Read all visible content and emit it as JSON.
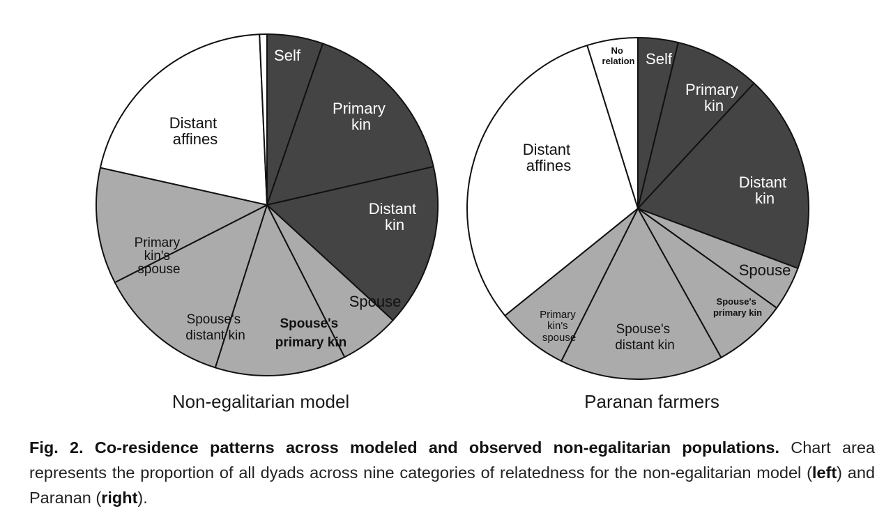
{
  "chart_data": [
    {
      "type": "pie",
      "title": "Non-egalitarian model",
      "slices": [
        {
          "label": "Self",
          "value": 5.3,
          "group": "dark"
        },
        {
          "label": "Primary kin",
          "value": 16.1,
          "group": "dark"
        },
        {
          "label": "Distant kin",
          "value": 15.4,
          "group": "dark"
        },
        {
          "label": "Spouse",
          "value": 5.7,
          "group": "light"
        },
        {
          "label": "Spouse's primary kin",
          "value": 12.4,
          "group": "light"
        },
        {
          "label": "Spouse's distant kin",
          "value": 12.6,
          "group": "light"
        },
        {
          "label": "Primary kin's spouse",
          "value": 11.0,
          "group": "light"
        },
        {
          "label": "Distant affines",
          "value": 20.8,
          "group": "white"
        },
        {
          "label": "No relation",
          "value": 0.7,
          "group": "white"
        }
      ]
    },
    {
      "type": "pie",
      "title": "Paranan farmers",
      "slices": [
        {
          "label": "Self",
          "value": 3.8,
          "group": "dark"
        },
        {
          "label": "Primary kin",
          "value": 8.1,
          "group": "dark"
        },
        {
          "label": "Distant kin",
          "value": 18.8,
          "group": "dark"
        },
        {
          "label": "Spouse",
          "value": 4.2,
          "group": "light"
        },
        {
          "label": "Spouse's primary kin",
          "value": 7.0,
          "group": "light"
        },
        {
          "label": "Spouse's distant kin",
          "value": 15.5,
          "group": "light"
        },
        {
          "label": "Primary kin's spouse",
          "value": 6.8,
          "group": "light"
        },
        {
          "label": "Distant affines",
          "value": 31.0,
          "group": "white"
        },
        {
          "label": "No relation",
          "value": 4.8,
          "group": "white"
        }
      ]
    }
  ],
  "colors": {
    "dark": "#444444",
    "light": "#ababab",
    "white": "#ffffff",
    "stroke": "#111111"
  },
  "figure": {
    "left_title": "Non-egalitarian model",
    "right_title": "Paranan farmers",
    "left_labels": {
      "self": "Self",
      "primary_kin": [
        "Primary",
        "kin"
      ],
      "distant_kin": [
        "Distant",
        "kin"
      ],
      "spouse": "Spouse",
      "spouses_primary_kin": [
        "Spouse's",
        "primary kin"
      ],
      "spouses_distant_kin": [
        "Spouse's",
        "distant kin"
      ],
      "primary_kins_spouse": [
        "Primary",
        "kin's",
        "spouse"
      ],
      "distant_affines": [
        "Distant",
        "affines"
      ]
    },
    "right_labels": {
      "no_relation": [
        "No",
        "relation"
      ],
      "self": "Self",
      "primary_kin": [
        "Primary",
        "kin"
      ],
      "distant_kin": [
        "Distant",
        "kin"
      ],
      "spouse": "Spouse",
      "spouses_primary_kin": [
        "Spouse's",
        "primary kin"
      ],
      "spouses_distant_kin": [
        "Spouse's",
        "distant kin"
      ],
      "primary_kins_spouse": [
        "Primary",
        "kin's",
        "spouse"
      ],
      "distant_affines": [
        "Distant",
        "affines"
      ]
    }
  },
  "caption": {
    "title": "Fig. 2. Co-residence patterns across modeled and observed non-egalitarian populations.",
    "text_1": " Chart area represents the proportion of all dyads across nine categories of relatedness for the non-egalitarian model (",
    "bold_left": "left",
    "text_2": ") and Paranan (",
    "bold_right": "right",
    "text_3": ")."
  }
}
